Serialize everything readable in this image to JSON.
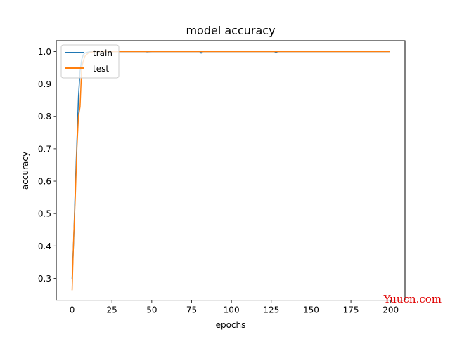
{
  "chart_data": {
    "type": "line",
    "title": "model accuracy",
    "xlabel": "epochs",
    "ylabel": "accuracy",
    "xlim": [
      -9.95,
      208.95
    ],
    "ylim": [
      0.2325,
      1.0335
    ],
    "xticks": [
      0,
      25,
      50,
      75,
      100,
      125,
      150,
      175,
      200
    ],
    "yticks": [
      0.3,
      0.4,
      0.5,
      0.6,
      0.7,
      0.8,
      0.9,
      1.0
    ],
    "ytick_labels": [
      "0.3",
      "0.4",
      "0.5",
      "0.6",
      "0.7",
      "0.8",
      "0.9",
      "1.0"
    ],
    "grid": false,
    "legend": {
      "position": "upper left",
      "entries": [
        "train",
        "test"
      ]
    },
    "series": [
      {
        "name": "train",
        "color": "#1f77b4",
        "x": [
          0,
          1,
          2,
          3,
          4,
          5,
          6,
          7,
          8,
          9,
          10,
          11,
          12,
          13,
          14,
          15,
          20,
          30,
          40,
          46,
          47,
          50,
          60,
          70,
          80,
          81,
          82,
          90,
          100,
          110,
          120,
          127,
          128,
          129,
          140,
          150,
          160,
          170,
          180,
          190,
          199
        ],
        "y": [
          0.3,
          0.42,
          0.58,
          0.72,
          0.86,
          0.94,
          0.975,
          0.99,
          0.995,
          0.997,
          0.998,
          0.999,
          0.999,
          1.0,
          1.0,
          1.0,
          1.0,
          1.0,
          1.0,
          1.0,
          0.999,
          1.0,
          1.0,
          1.0,
          1.0,
          0.995,
          1.0,
          1.0,
          1.0,
          1.0,
          1.0,
          1.0,
          0.996,
          1.0,
          1.0,
          1.0,
          1.0,
          1.0,
          1.0,
          1.0,
          1.0
        ]
      },
      {
        "name": "test",
        "color": "#ff7f0e",
        "x": [
          0,
          1,
          2,
          3,
          4,
          5,
          6,
          7,
          8,
          9,
          10,
          11,
          12,
          13,
          14,
          15,
          20,
          30,
          40,
          50,
          60,
          70,
          80,
          90,
          100,
          110,
          120,
          130,
          140,
          150,
          160,
          170,
          180,
          190,
          199
        ],
        "y": [
          0.265,
          0.43,
          0.55,
          0.7,
          0.8,
          0.83,
          0.95,
          0.97,
          0.985,
          0.99,
          0.995,
          0.997,
          0.998,
          0.999,
          1.0,
          1.0,
          1.0,
          1.0,
          1.0,
          1.0,
          1.0,
          1.0,
          1.0,
          1.0,
          1.0,
          1.0,
          1.0,
          1.0,
          1.0,
          1.0,
          1.0,
          1.0,
          1.0,
          1.0,
          1.0
        ]
      }
    ]
  },
  "watermark": {
    "text": "Yuucn.com",
    "color": "#e00000"
  }
}
